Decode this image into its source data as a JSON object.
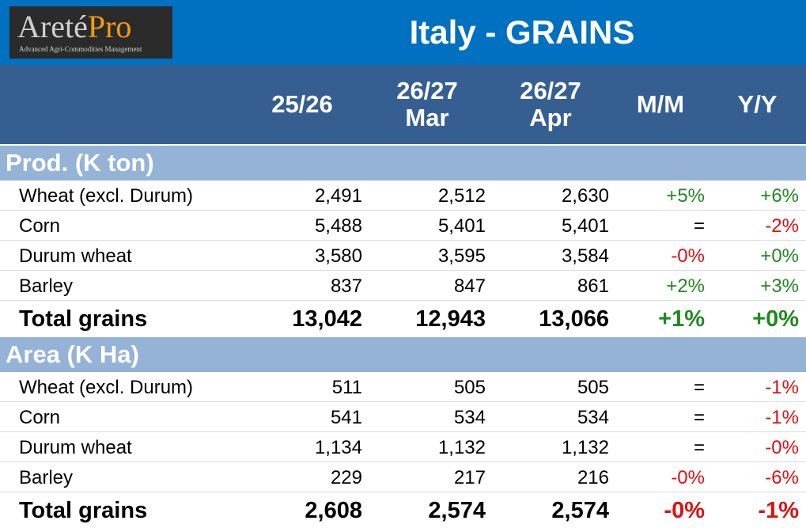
{
  "logo": {
    "brand": "Areté",
    "brand_accent": "Pro",
    "tagline": "Advanced Agri-Commodities Management"
  },
  "title": "Italy - GRAINS",
  "columns": [
    "25/26",
    "26/27\nMar",
    "26/27\nApr",
    "M/M",
    "Y/Y"
  ],
  "sections": [
    {
      "label": "Prod. (K ton)",
      "rows": [
        {
          "label": "Wheat (excl. Durum)",
          "c1": "2,491",
          "c2": "2,512",
          "c3": "2,630",
          "mm": "+5%",
          "yy": "+6%"
        },
        {
          "label": "Corn",
          "c1": "5,488",
          "c2": "5,401",
          "c3": "5,401",
          "mm": "=",
          "yy": "-2%"
        },
        {
          "label": "Durum wheat",
          "c1": "3,580",
          "c2": "3,595",
          "c3": "3,584",
          "mm": "-0%",
          "yy": "+0%"
        },
        {
          "label": "Barley",
          "c1": "837",
          "c2": "847",
          "c3": "861",
          "mm": "+2%",
          "yy": "+3%"
        }
      ],
      "total": {
        "label": "Total grains",
        "c1": "13,042",
        "c2": "12,943",
        "c3": "13,066",
        "mm": "+1%",
        "yy": "+0%"
      }
    },
    {
      "label": "Area (K Ha)",
      "rows": [
        {
          "label": "Wheat (excl. Durum)",
          "c1": "511",
          "c2": "505",
          "c3": "505",
          "mm": "=",
          "yy": "-1%"
        },
        {
          "label": "Corn",
          "c1": "541",
          "c2": "534",
          "c3": "534",
          "mm": "=",
          "yy": "-1%"
        },
        {
          "label": "Durum wheat",
          "c1": "1,134",
          "c2": "1,132",
          "c3": "1,132",
          "mm": "=",
          "yy": "-0%"
        },
        {
          "label": "Barley",
          "c1": "229",
          "c2": "217",
          "c3": "216",
          "mm": "-0%",
          "yy": "-6%"
        }
      ],
      "total": {
        "label": "Total grains",
        "c1": "2,608",
        "c2": "2,574",
        "c3": "2,574",
        "mm": "-0%",
        "yy": "-1%"
      }
    }
  ],
  "colors": {
    "title_bg": "#0070c0",
    "header_bg": "#365f91",
    "section_bg": "#95b3d7",
    "positive": "#1f8a1f",
    "negative": "#e01010"
  },
  "chart_data": {
    "type": "table",
    "title": "Italy - GRAINS",
    "headers": [
      "",
      "25/26",
      "26/27 Mar",
      "26/27 Apr",
      "M/M",
      "Y/Y"
    ],
    "sections": [
      {
        "name": "Prod. (K ton)",
        "rows": [
          [
            "Wheat (excl. Durum)",
            2491,
            2512,
            2630,
            "+5%",
            "+6%"
          ],
          [
            "Corn",
            5488,
            5401,
            5401,
            "=",
            "-2%"
          ],
          [
            "Durum wheat",
            3580,
            3595,
            3584,
            "-0%",
            "+0%"
          ],
          [
            "Barley",
            837,
            847,
            861,
            "+2%",
            "+3%"
          ],
          [
            "Total grains",
            13042,
            12943,
            13066,
            "+1%",
            "+0%"
          ]
        ]
      },
      {
        "name": "Area (K Ha)",
        "rows": [
          [
            "Wheat (excl. Durum)",
            511,
            505,
            505,
            "=",
            "-1%"
          ],
          [
            "Corn",
            541,
            534,
            534,
            "=",
            "-1%"
          ],
          [
            "Durum wheat",
            1134,
            1132,
            1132,
            "=",
            "-0%"
          ],
          [
            "Barley",
            229,
            217,
            216,
            "-0%",
            "-6%"
          ],
          [
            "Total grains",
            2608,
            2574,
            2574,
            "-0%",
            "-1%"
          ]
        ]
      }
    ]
  }
}
